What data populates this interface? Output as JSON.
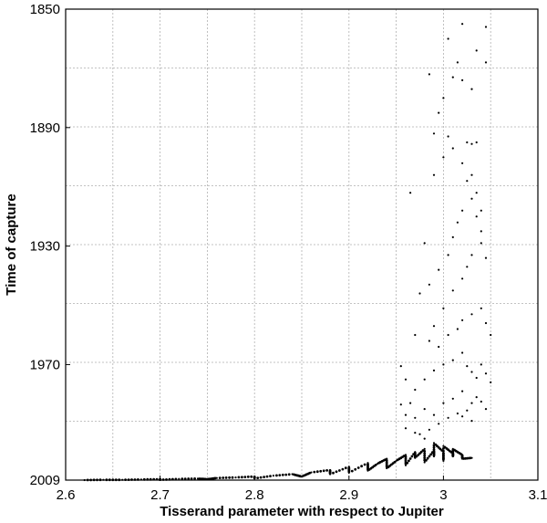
{
  "chart_data": {
    "type": "scatter",
    "title": "",
    "xlabel": "Tisserand parameter with respect to Jupiter",
    "ylabel": "Time of capture",
    "xlim": [
      2.6,
      3.1
    ],
    "ylim": [
      2009,
      1850
    ],
    "y_inverted": true,
    "grid": true,
    "x_ticks": [
      2.6,
      2.7,
      2.8,
      2.9,
      3.0,
      3.1
    ],
    "x_tick_labels": [
      "2.6",
      "2.7",
      "2.8",
      "2.9",
      "3",
      "3.1"
    ],
    "y_ticks": [
      2009,
      1970,
      1930,
      1890,
      1850
    ],
    "y_tick_labels": [
      "2009",
      "1970",
      "1930",
      "1890",
      "1850"
    ],
    "series": [
      {
        "marker_color": "#000000",
        "points": [
          [
            2.62,
            2009
          ],
          [
            2.64,
            2008.9
          ],
          [
            2.66,
            2008.9
          ],
          [
            2.68,
            2008.8
          ],
          [
            2.7,
            2008.7
          ],
          [
            2.72,
            2008.6
          ],
          [
            2.74,
            2008.5
          ],
          [
            2.76,
            2008.3
          ],
          [
            2.78,
            2008.1
          ],
          [
            2.8,
            2007.8
          ],
          [
            2.82,
            2007.5
          ],
          [
            2.84,
            2007.0
          ],
          [
            2.86,
            2006.4
          ],
          [
            2.88,
            2005.6
          ],
          [
            2.9,
            2004.5
          ],
          [
            2.92,
            2003.2
          ],
          [
            2.94,
            2001.8
          ],
          [
            2.96,
            2000.5
          ],
          [
            2.97,
            1999.5
          ],
          [
            2.98,
            1998.5
          ],
          [
            2.99,
            1999.0
          ],
          [
            3.0,
            1999.5
          ],
          [
            3.01,
            2000.0
          ],
          [
            3.02,
            2000.5
          ],
          [
            2.7,
            2008.9
          ],
          [
            2.75,
            2008.7
          ],
          [
            2.8,
            2008.4
          ],
          [
            2.85,
            2007.8
          ],
          [
            2.88,
            2007.0
          ],
          [
            2.9,
            2006.5
          ],
          [
            2.92,
            2005.8
          ],
          [
            2.94,
            2005.0
          ],
          [
            2.96,
            2004.0
          ],
          [
            2.98,
            2003.0
          ],
          [
            3.0,
            2002.5
          ],
          [
            3.02,
            2001.8
          ],
          [
            2.93,
            2003.5
          ],
          [
            2.95,
            2002.5
          ],
          [
            2.97,
            2001.5
          ],
          [
            2.99,
            2001.0
          ],
          [
            3.01,
            2001.0
          ],
          [
            3.03,
            2001.5
          ],
          [
            2.96,
            1991.5
          ],
          [
            2.97,
            1993.0
          ],
          [
            2.98,
            1995.0
          ],
          [
            2.99,
            1996.5
          ],
          [
            3.0,
            1997.5
          ],
          [
            3.01,
            1998.5
          ],
          [
            2.975,
            1993.5
          ],
          [
            2.985,
            1992.0
          ],
          [
            2.995,
            1990.0
          ],
          [
            3.005,
            1988.0
          ],
          [
            3.015,
            1986.5
          ],
          [
            3.025,
            1985.5
          ],
          [
            2.98,
            1985.0
          ],
          [
            2.99,
            1987.0
          ],
          [
            3.0,
            1983.0
          ],
          [
            3.01,
            1981.5
          ],
          [
            3.02,
            1979.0
          ],
          [
            3.03,
            1983.0
          ],
          [
            3.035,
            1981.0
          ],
          [
            3.04,
            1982.5
          ],
          [
            3.045,
            1985.0
          ],
          [
            3.02,
            1987.5
          ],
          [
            3.03,
            1989.0
          ],
          [
            2.97,
            1988.0
          ],
          [
            2.96,
            1987.0
          ],
          [
            2.955,
            1983.5
          ],
          [
            2.965,
            1983.0
          ],
          [
            2.97,
            1978.5
          ],
          [
            2.98,
            1975.0
          ],
          [
            2.99,
            1972.0
          ],
          [
            3.0,
            1970.0
          ],
          [
            3.01,
            1968.5
          ],
          [
            3.02,
            1966.0
          ],
          [
            3.025,
            1970.5
          ],
          [
            3.03,
            1972.5
          ],
          [
            3.035,
            1974.5
          ],
          [
            3.04,
            1970.0
          ],
          [
            3.045,
            1973.0
          ],
          [
            3.05,
            1976.0
          ],
          [
            2.995,
            1964.0
          ],
          [
            3.005,
            1960.0
          ],
          [
            3.015,
            1958.0
          ],
          [
            3.02,
            1955.0
          ],
          [
            3.03,
            1953.0
          ],
          [
            3.04,
            1951.0
          ],
          [
            3.045,
            1956.0
          ],
          [
            3.05,
            1960.0
          ],
          [
            2.985,
            1962.0
          ],
          [
            2.99,
            1957.0
          ],
          [
            3.0,
            1951.0
          ],
          [
            3.01,
            1945.0
          ],
          [
            3.02,
            1941.0
          ],
          [
            3.025,
            1937.0
          ],
          [
            3.03,
            1933.0
          ],
          [
            3.04,
            1929.0
          ],
          [
            3.045,
            1934.0
          ],
          [
            2.995,
            1938.0
          ],
          [
            3.005,
            1933.0
          ],
          [
            3.01,
            1927.0
          ],
          [
            3.015,
            1922.0
          ],
          [
            3.02,
            1918.0
          ],
          [
            3.03,
            1914.0
          ],
          [
            3.035,
            1920.0
          ],
          [
            3.04,
            1925.0
          ],
          [
            2.98,
            1929.0
          ],
          [
            2.985,
            1943.0
          ],
          [
            2.975,
            1946.0
          ],
          [
            2.965,
            1912.0
          ],
          [
            2.99,
            1906.0
          ],
          [
            3.0,
            1900.0
          ],
          [
            3.005,
            1893.0
          ],
          [
            3.01,
            1897.0
          ],
          [
            3.02,
            1902.0
          ],
          [
            3.025,
            1908.0
          ],
          [
            3.03,
            1906.0
          ],
          [
            3.035,
            1912.0
          ],
          [
            3.04,
            1918.0
          ],
          [
            2.995,
            1885.0
          ],
          [
            3.0,
            1880.0
          ],
          [
            3.01,
            1873.0
          ],
          [
            3.015,
            1868.0
          ],
          [
            3.02,
            1874.0
          ],
          [
            3.03,
            1877.0
          ],
          [
            3.035,
            1864.0
          ],
          [
            3.045,
            1868.0
          ],
          [
            2.985,
            1872.0
          ],
          [
            2.99,
            1892.0
          ],
          [
            3.005,
            1860.0
          ],
          [
            3.02,
            1855.0
          ],
          [
            3.045,
            1856.0
          ],
          [
            3.025,
            1895.0
          ],
          [
            3.03,
            1895.5
          ],
          [
            3.035,
            1895.0
          ],
          [
            2.97,
            1960.0
          ],
          [
            2.96,
            1975.0
          ],
          [
            2.955,
            1970.5
          ]
        ]
      }
    ]
  }
}
